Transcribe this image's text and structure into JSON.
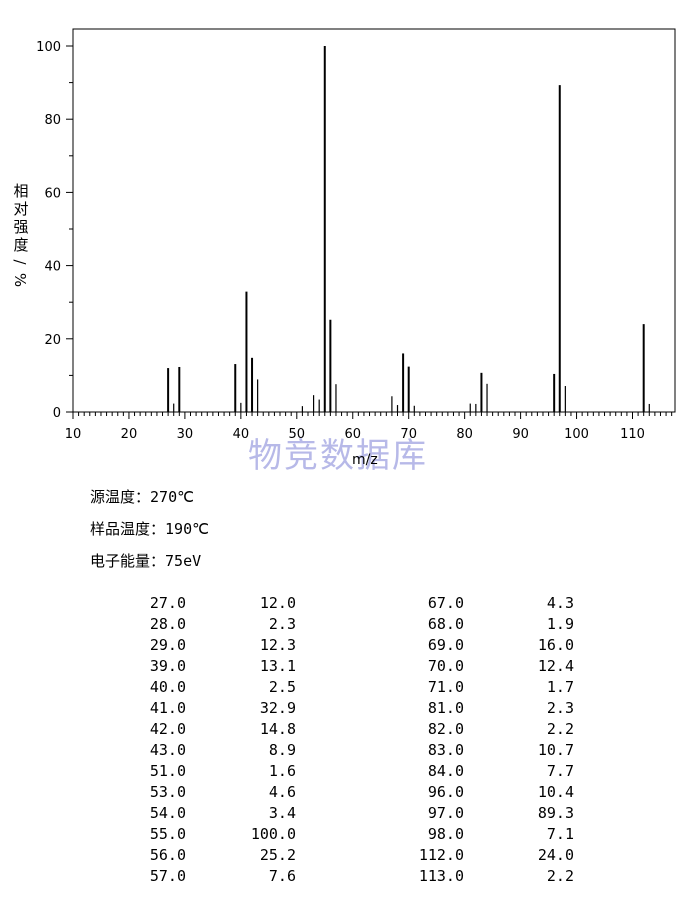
{
  "chart_data": {
    "type": "bar",
    "xlabel": "m/z",
    "ylabel": "相对强度/%",
    "xlim": [
      10,
      117
    ],
    "ylim": [
      0,
      100
    ],
    "xticks": [
      10,
      20,
      30,
      40,
      50,
      60,
      70,
      80,
      90,
      100,
      110
    ],
    "yticks": [
      0,
      20,
      40,
      60,
      80,
      100
    ],
    "points": [
      {
        "x": 27.0,
        "y": 12.0
      },
      {
        "x": 28.0,
        "y": 2.3
      },
      {
        "x": 29.0,
        "y": 12.3
      },
      {
        "x": 39.0,
        "y": 13.1
      },
      {
        "x": 40.0,
        "y": 2.5
      },
      {
        "x": 41.0,
        "y": 32.9
      },
      {
        "x": 42.0,
        "y": 14.8
      },
      {
        "x": 43.0,
        "y": 8.9
      },
      {
        "x": 51.0,
        "y": 1.6
      },
      {
        "x": 53.0,
        "y": 4.6
      },
      {
        "x": 54.0,
        "y": 3.4
      },
      {
        "x": 55.0,
        "y": 100.0
      },
      {
        "x": 56.0,
        "y": 25.2
      },
      {
        "x": 57.0,
        "y": 7.6
      },
      {
        "x": 67.0,
        "y": 4.3
      },
      {
        "x": 68.0,
        "y": 1.9
      },
      {
        "x": 69.0,
        "y": 16.0
      },
      {
        "x": 70.0,
        "y": 12.4
      },
      {
        "x": 71.0,
        "y": 1.7
      },
      {
        "x": 81.0,
        "y": 2.3
      },
      {
        "x": 82.0,
        "y": 2.2
      },
      {
        "x": 83.0,
        "y": 10.7
      },
      {
        "x": 84.0,
        "y": 7.7
      },
      {
        "x": 96.0,
        "y": 10.4
      },
      {
        "x": 97.0,
        "y": 89.3
      },
      {
        "x": 98.0,
        "y": 7.1
      },
      {
        "x": 112.0,
        "y": 24.0
      },
      {
        "x": 113.0,
        "y": 2.2
      }
    ],
    "grid": false,
    "watermark": "物竞数据库"
  },
  "info": [
    {
      "label": "源温度：",
      "value": "270℃"
    },
    {
      "label": "样品温度：",
      "value": "190℃"
    },
    {
      "label": "电子能量：",
      "value": "75eV"
    }
  ],
  "table": {
    "left": [
      [
        "27.0",
        "12.0"
      ],
      [
        "28.0",
        "2.3"
      ],
      [
        "29.0",
        "12.3"
      ],
      [
        "39.0",
        "13.1"
      ],
      [
        "40.0",
        "2.5"
      ],
      [
        "41.0",
        "32.9"
      ],
      [
        "42.0",
        "14.8"
      ],
      [
        "43.0",
        "8.9"
      ],
      [
        "51.0",
        "1.6"
      ],
      [
        "53.0",
        "4.6"
      ],
      [
        "54.0",
        "3.4"
      ],
      [
        "55.0",
        "100.0"
      ],
      [
        "56.0",
        "25.2"
      ],
      [
        "57.0",
        "7.6"
      ]
    ],
    "right": [
      [
        "67.0",
        "4.3"
      ],
      [
        "68.0",
        "1.9"
      ],
      [
        "69.0",
        "16.0"
      ],
      [
        "70.0",
        "12.4"
      ],
      [
        "71.0",
        "1.7"
      ],
      [
        "81.0",
        "2.3"
      ],
      [
        "82.0",
        "2.2"
      ],
      [
        "83.0",
        "10.7"
      ],
      [
        "84.0",
        "7.7"
      ],
      [
        "96.0",
        "10.4"
      ],
      [
        "97.0",
        "89.3"
      ],
      [
        "98.0",
        "7.1"
      ],
      [
        "112.0",
        "24.0"
      ],
      [
        "113.0",
        "2.2"
      ]
    ]
  }
}
